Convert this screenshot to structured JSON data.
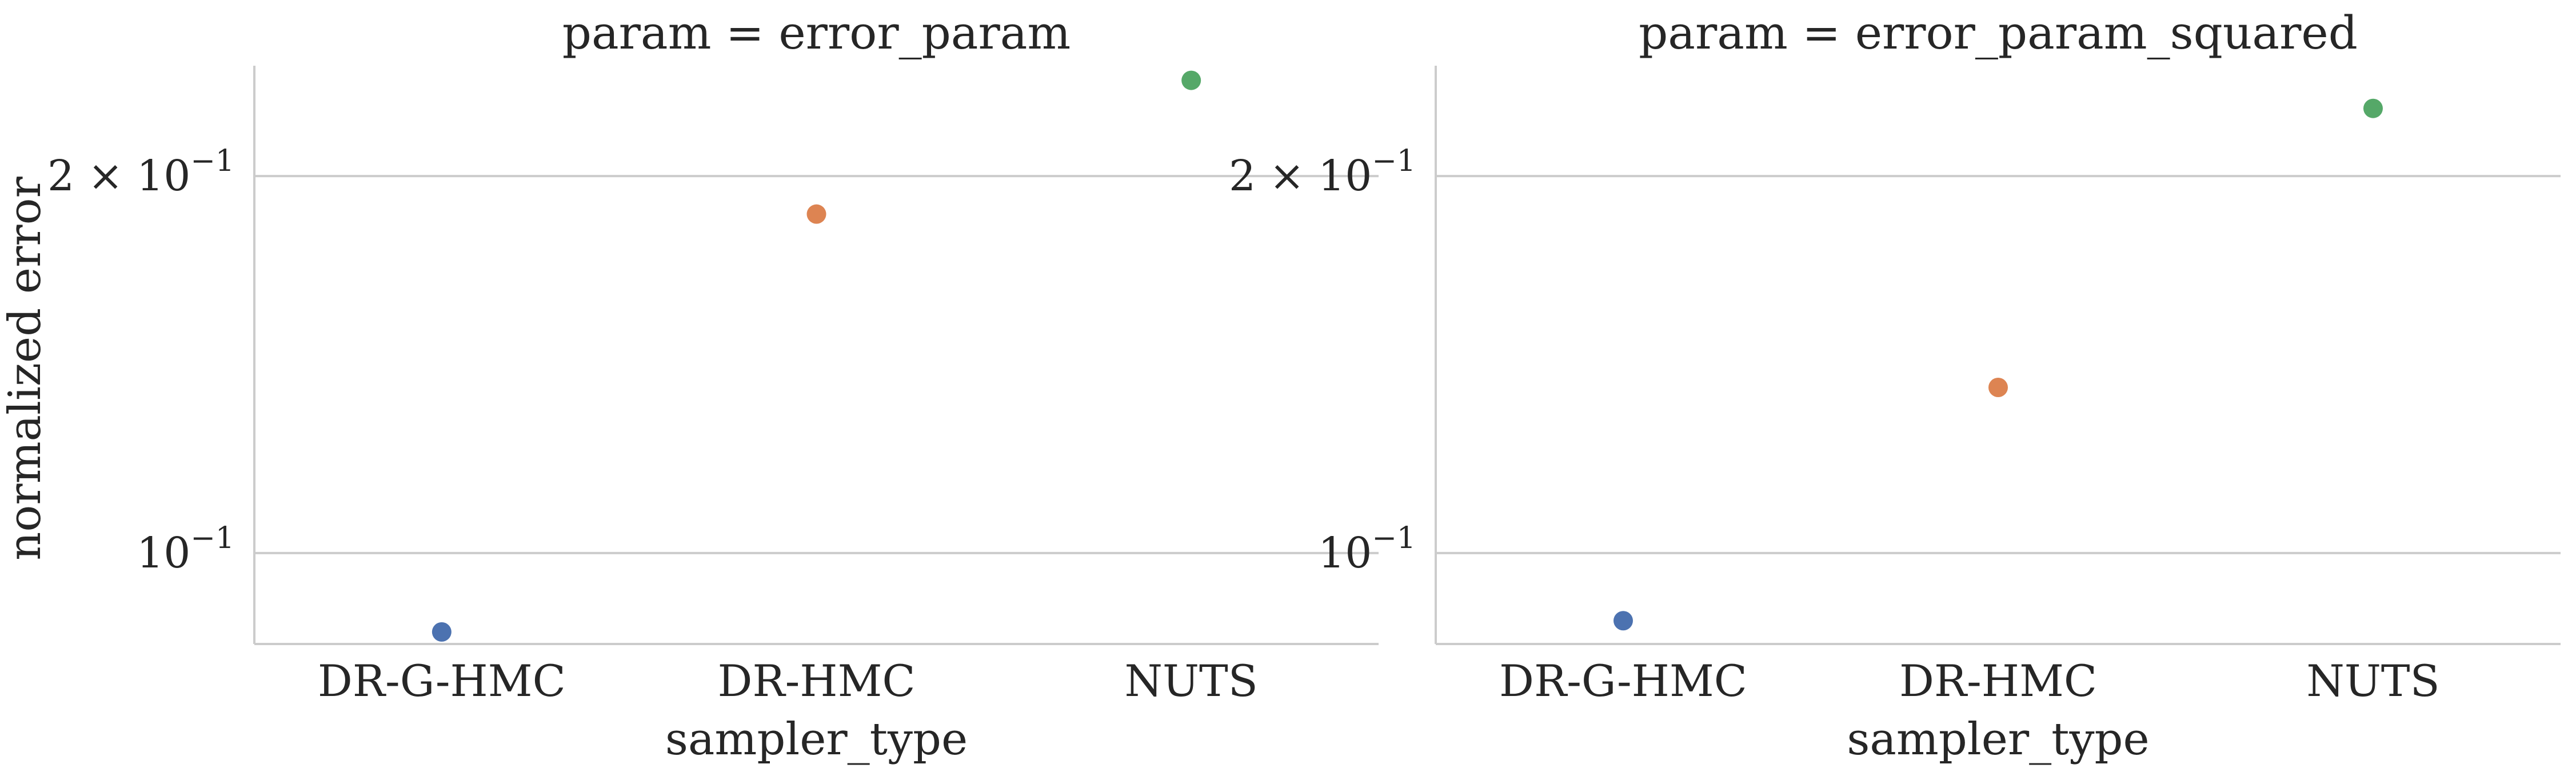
{
  "chart_data": {
    "type": "scatter",
    "y_scale": "log",
    "y_label": "normalized error",
    "shared_ylim": [
      0.0846,
      0.245
    ],
    "grid": "horizontal-at-major-ticks",
    "y_ticks": [
      {
        "value": 0.1,
        "base": "10",
        "exponent": "−1",
        "mantissa": ""
      },
      {
        "value": 0.2,
        "base": "10",
        "exponent": "−1",
        "mantissa": "2 × "
      }
    ],
    "categories": [
      "DR-G-HMC",
      "DR-HMC",
      "NUTS"
    ],
    "colors": {
      "DR-G-HMC": "#4c72b0",
      "DR-HMC": "#dd8452",
      "NUTS": "#55a868"
    },
    "panels": [
      {
        "title": "param = error_param",
        "xlabel": "sampler_type",
        "points": [
          {
            "category": "DR-G-HMC",
            "y": 0.0865
          },
          {
            "category": "DR-HMC",
            "y": 0.1865
          },
          {
            "category": "NUTS",
            "y": 0.2385
          }
        ]
      },
      {
        "title": "param = error_param_squared",
        "xlabel": "sampler_type",
        "points": [
          {
            "category": "DR-G-HMC",
            "y": 0.0883
          },
          {
            "category": "DR-HMC",
            "y": 0.1356
          },
          {
            "category": "NUTS",
            "y": 0.2265
          }
        ]
      }
    ]
  }
}
